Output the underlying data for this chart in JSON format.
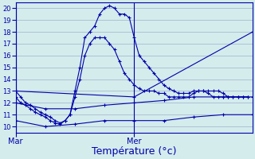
{
  "background_color": "#d4ecec",
  "grid_color": "#a0b0cc",
  "line_color": "#0000aa",
  "ylim": [
    9.5,
    20.5
  ],
  "xlim": [
    0,
    48
  ],
  "yticks": [
    10,
    11,
    12,
    13,
    14,
    15,
    16,
    17,
    18,
    19,
    20
  ],
  "xlabel": "Température (°c)",
  "xlabel_fontsize": 9,
  "xtick_labels": [
    "Mar",
    "Mer"
  ],
  "xtick_positions": [
    0,
    24
  ],
  "series": [
    {
      "x": [
        0,
        1,
        2,
        3,
        4,
        5,
        6,
        7,
        8,
        9,
        10,
        11,
        12,
        13,
        14,
        15,
        16,
        17,
        18,
        19,
        20,
        21,
        22,
        23,
        24,
        25,
        26,
        27,
        28,
        29,
        30,
        31,
        32,
        33,
        34,
        35,
        36,
        37,
        38,
        39,
        40,
        41,
        42,
        43,
        44,
        45,
        46,
        47
      ],
      "y": [
        13.0,
        12.5,
        12.0,
        11.8,
        11.5,
        11.2,
        11.0,
        10.8,
        10.5,
        10.3,
        10.5,
        11.0,
        13.0,
        15.0,
        17.5,
        18.0,
        18.5,
        19.5,
        20.0,
        20.2,
        20.0,
        19.5,
        19.5,
        19.2,
        17.5,
        16.0,
        15.5,
        15.0,
        14.5,
        14.0,
        13.5,
        13.2,
        13.0,
        12.8,
        12.8,
        12.8,
        13.0,
        13.0,
        13.0,
        13.0,
        13.0,
        13.0,
        12.8,
        12.5,
        12.5,
        12.5,
        12.5,
        12.5
      ]
    },
    {
      "x": [
        0,
        1,
        2,
        3,
        4,
        5,
        6,
        7,
        8,
        9,
        10,
        11,
        12,
        13,
        14,
        15,
        16,
        17,
        18,
        19,
        20,
        21,
        22,
        23,
        24,
        25,
        26,
        27,
        28,
        29,
        30,
        31,
        32,
        33,
        34,
        35,
        36,
        37,
        38,
        39,
        40,
        41,
        42,
        43,
        44,
        45,
        46,
        47
      ],
      "y": [
        12.5,
        12.0,
        11.8,
        11.5,
        11.2,
        11.0,
        10.8,
        10.5,
        10.3,
        10.2,
        10.5,
        11.0,
        12.5,
        14.0,
        16.0,
        17.0,
        17.5,
        17.5,
        17.5,
        17.0,
        16.5,
        15.5,
        14.5,
        14.0,
        13.5,
        13.2,
        13.0,
        13.0,
        13.0,
        12.8,
        12.8,
        12.5,
        12.5,
        12.5,
        12.5,
        12.5,
        12.8,
        13.0,
        13.0,
        12.8,
        12.5,
        12.5,
        12.5,
        12.5,
        12.5,
        12.5,
        12.5,
        12.5
      ]
    },
    {
      "x": [
        0,
        24,
        48
      ],
      "y": [
        13.0,
        12.5,
        18.0
      ]
    },
    {
      "x": [
        0,
        6,
        12,
        18,
        24,
        30,
        36,
        42,
        48
      ],
      "y": [
        12.0,
        11.5,
        11.5,
        11.8,
        12.0,
        12.2,
        12.5,
        12.5,
        12.5
      ]
    },
    {
      "x": [
        0,
        6,
        12,
        18,
        24,
        30,
        36,
        42,
        48
      ],
      "y": [
        10.5,
        10.0,
        10.2,
        10.5,
        10.5,
        10.5,
        10.8,
        11.0,
        11.0
      ]
    }
  ]
}
